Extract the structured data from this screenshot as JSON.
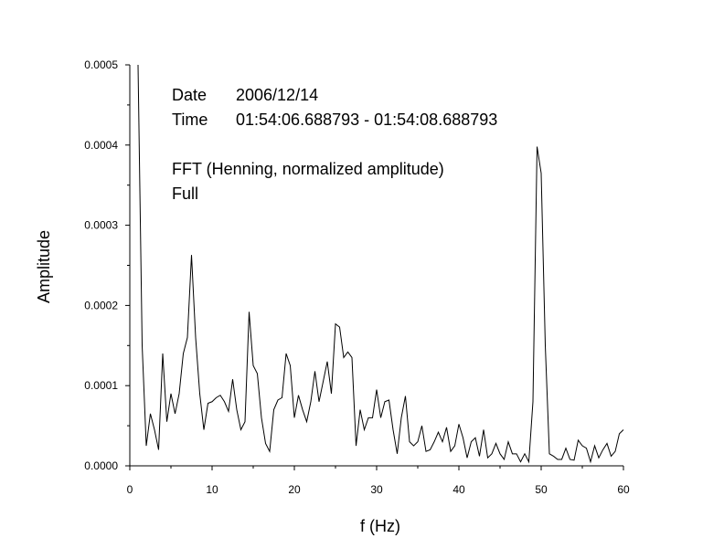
{
  "chart_data": {
    "type": "line",
    "xlabel": "f (Hz)",
    "ylabel": "Amplitude",
    "xlim": [
      0,
      60
    ],
    "ylim": [
      0,
      0.0005
    ],
    "x_ticks": [
      0,
      10,
      20,
      30,
      40,
      50,
      60
    ],
    "x_tick_labels": [
      "0",
      "10",
      "20",
      "30",
      "40",
      "50",
      "60"
    ],
    "y_ticks": [
      0,
      0.0001,
      0.0002,
      0.0003,
      0.0004,
      0.0005
    ],
    "y_tick_labels": [
      "0.0000",
      "0.0001",
      "0.0002",
      "0.0003",
      "0.0004",
      "0.0005"
    ],
    "grid": false,
    "line_color": "#000000",
    "annotations": {
      "date_label": "Date",
      "date_value": "2006/12/14",
      "time_label": "Time",
      "time_value": "01:54:06.688793 - 01:54:08.688793",
      "method": "FFT (Henning, normalized amplitude)",
      "range": "Full"
    },
    "series": [
      {
        "x": [
          1.0,
          1.5,
          2.0,
          2.5,
          3.0,
          3.5,
          4.0,
          4.5,
          5.0,
          5.5,
          6.0,
          6.5,
          7.0,
          7.5,
          8.0,
          8.5,
          9.0,
          9.5,
          10.0,
          10.5,
          11.0,
          11.5,
          12.0,
          12.5,
          13.0,
          13.5,
          14.0,
          14.5,
          15.0,
          15.5,
          16.0,
          16.5,
          17.0,
          17.5,
          18.0,
          18.5,
          19.0,
          19.5,
          20.0,
          20.5,
          21.0,
          21.5,
          22.0,
          22.5,
          23.0,
          23.5,
          24.0,
          24.5,
          25.0,
          25.5,
          26.0,
          26.5,
          27.0,
          27.5,
          28.0,
          28.5,
          29.0,
          29.5,
          30.0,
          30.5,
          31.0,
          31.5,
          32.0,
          32.5,
          33.0,
          33.5,
          34.0,
          34.5,
          35.0,
          35.5,
          36.0,
          36.5,
          37.0,
          37.5,
          38.0,
          38.5,
          39.0,
          39.5,
          40.0,
          40.5,
          41.0,
          41.5,
          42.0,
          42.5,
          43.0,
          43.5,
          44.0,
          44.5,
          45.0,
          45.5,
          46.0,
          46.5,
          47.0,
          47.5,
          48.0,
          48.5,
          49.0,
          49.5,
          50.0,
          50.5,
          51.0,
          51.5,
          52.0,
          52.5,
          53.0,
          53.5,
          54.0,
          54.5,
          55.0,
          55.5,
          56.0,
          56.5,
          57.0,
          57.5,
          58.0,
          58.5,
          59.0,
          59.5,
          60.0
        ],
        "y": [
          0.0005,
          0.00015,
          2.5e-05,
          6.5e-05,
          4.5e-05,
          2e-05,
          0.00014,
          5.5e-05,
          9e-05,
          6.5e-05,
          9e-05,
          0.00014,
          0.00016,
          0.000263,
          0.00016,
          9e-05,
          4.5e-05,
          7.8e-05,
          8e-05,
          8.5e-05,
          8.8e-05,
          8e-05,
          6.8e-05,
          0.000108,
          7e-05,
          4.5e-05,
          5.5e-05,
          0.000192,
          0.000125,
          0.000115,
          6e-05,
          2.8e-05,
          1.8e-05,
          7e-05,
          8.2e-05,
          8.5e-05,
          0.00014,
          0.000125,
          6e-05,
          8.8e-05,
          7e-05,
          5.5e-05,
          8e-05,
          0.000118,
          8e-05,
          0.000105,
          0.00013,
          9e-05,
          0.000177,
          0.000173,
          0.000135,
          0.000142,
          0.000135,
          2.5e-05,
          7e-05,
          4.5e-05,
          6e-05,
          6e-05,
          9.5e-05,
          6e-05,
          8e-05,
          8.2e-05,
          4.5e-05,
          1.5e-05,
          6e-05,
          8.7e-05,
          3e-05,
          2.5e-05,
          3e-05,
          5e-05,
          1.8e-05,
          2e-05,
          3e-05,
          4.2e-05,
          3e-05,
          4.8e-05,
          1.8e-05,
          2.5e-05,
          5.2e-05,
          3.5e-05,
          1e-05,
          3e-05,
          3.5e-05,
          1.2e-05,
          4.5e-05,
          1e-05,
          1.5e-05,
          2.8e-05,
          1.5e-05,
          8e-06,
          3e-05,
          1.5e-05,
          1.5e-05,
          5e-06,
          1.5e-05,
          5e-06,
          8e-05,
          0.000398,
          0.000365,
          0.00015,
          1.5e-05,
          1.2e-05,
          8e-06,
          8e-06,
          2.2e-05,
          8e-06,
          7e-06,
          3.2e-05,
          2.5e-05,
          2.2e-05,
          5e-06,
          2.5e-05,
          1e-05,
          2e-05,
          2.8e-05,
          1.2e-05,
          1.8e-05,
          4e-05,
          4.5e-05
        ]
      }
    ]
  }
}
